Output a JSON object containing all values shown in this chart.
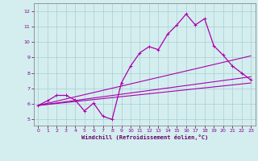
{
  "xlabel": "Windchill (Refroidissement éolien,°C)",
  "bg_color": "#d4eef0",
  "grid_color": "#aaccd0",
  "line_color": "#aa00aa",
  "xlim": [
    -0.5,
    23.5
  ],
  "ylim": [
    4.6,
    12.5
  ],
  "xticks": [
    0,
    1,
    2,
    3,
    4,
    5,
    6,
    7,
    8,
    9,
    10,
    11,
    12,
    13,
    14,
    15,
    16,
    17,
    18,
    19,
    20,
    21,
    22,
    23
  ],
  "yticks": [
    5,
    6,
    7,
    8,
    9,
    10,
    11,
    12
  ],
  "line1_x": [
    0,
    1,
    2,
    3,
    4,
    5,
    6,
    7,
    8,
    9,
    10,
    11,
    12,
    13,
    14,
    15,
    16,
    17,
    18,
    19,
    20,
    21,
    22,
    23
  ],
  "line1_y": [
    5.9,
    6.2,
    6.55,
    6.55,
    6.25,
    5.55,
    6.05,
    5.2,
    5.0,
    7.35,
    8.45,
    9.3,
    9.7,
    9.5,
    10.5,
    11.1,
    11.8,
    11.1,
    11.5,
    9.75,
    9.15,
    8.45,
    8.0,
    7.55
  ],
  "line2_x": [
    0,
    23
  ],
  "line2_y": [
    5.9,
    9.1
  ],
  "line3_x": [
    0,
    23
  ],
  "line3_y": [
    5.9,
    7.75
  ],
  "line4_x": [
    0,
    23
  ],
  "line4_y": [
    5.9,
    7.35
  ]
}
